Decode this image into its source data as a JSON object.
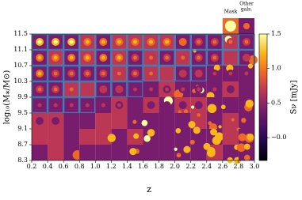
{
  "chart_data": {
    "type": "image_grid",
    "xlabel": "z",
    "ylabel": "log₁₀(M⁎/M⊙)",
    "xlim": [
      0.2,
      3.0
    ],
    "xticks": [
      0.2,
      0.4,
      0.6,
      0.8,
      {
        "value": 1,
        "label": "1.0"
      },
      1.2,
      1.4,
      1.6,
      1.8,
      {
        "value": 2,
        "label": "2.0"
      },
      2.2,
      2.4,
      2.6,
      2.8,
      {
        "value": 3,
        "label": "3.0"
      }
    ],
    "ylim": [
      8.3,
      11.5
    ],
    "yticks": [
      8.3,
      8.7,
      9.1,
      9.5,
      9.9,
      10.3,
      10.7,
      11.1,
      11.5
    ],
    "colorbar": {
      "label": "Sν [mJy]",
      "lim": [
        -0.33,
        1.5
      ],
      "ticks": [
        1.5,
        {
          "value": 1,
          "label": "1.0"
        },
        0.5,
        {
          "value": 0,
          "label": "−0.0"
        }
      ]
    },
    "annotations": {
      "mask": "Mask",
      "other": [
        "Other",
        "gals."
      ]
    }
  }
}
